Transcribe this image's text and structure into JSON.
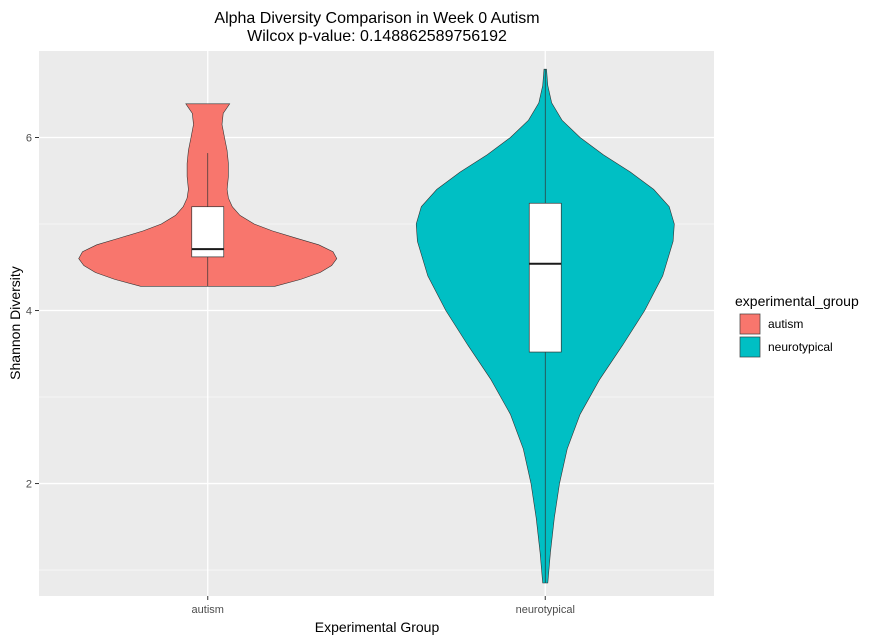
{
  "chart_data": {
    "type": "violin",
    "title": "Alpha Diversity Comparison in Week 0 Autism",
    "subtitle": "Wilcox p-value: 0.148862589756192",
    "xlabel": "Experimental Group",
    "ylabel": "Shannon Diversity",
    "categories": [
      "autism",
      "neurotypical"
    ],
    "ylim": [
      0.7,
      7.0
    ],
    "y_ticks": [
      2,
      4,
      6
    ],
    "y_tick_labels": [
      "2",
      "4",
      "6"
    ],
    "grid": true,
    "legend": {
      "title": "experimental_group",
      "position": "right",
      "entries": [
        {
          "label": "autism",
          "color": "#F8766D"
        },
        {
          "label": "neurotypical",
          "color": "#00BFC4"
        }
      ]
    },
    "series": [
      {
        "group": "autism",
        "color": "#F8766D",
        "violin_min": 4.28,
        "violin_max": 6.39,
        "density_profile": [
          [
            4.28,
            0.52
          ],
          [
            4.36,
            0.72
          ],
          [
            4.44,
            0.87
          ],
          [
            4.52,
            0.96
          ],
          [
            4.6,
            1.0
          ],
          [
            4.68,
            0.97
          ],
          [
            4.76,
            0.86
          ],
          [
            4.84,
            0.68
          ],
          [
            4.92,
            0.5
          ],
          [
            5.0,
            0.36
          ],
          [
            5.1,
            0.25
          ],
          [
            5.2,
            0.19
          ],
          [
            5.3,
            0.16
          ],
          [
            5.4,
            0.15
          ],
          [
            5.55,
            0.16
          ],
          [
            5.7,
            0.16
          ],
          [
            5.85,
            0.15
          ],
          [
            6.0,
            0.13
          ],
          [
            6.15,
            0.11
          ],
          [
            6.28,
            0.12
          ],
          [
            6.39,
            0.17
          ]
        ],
        "box": {
          "whisker_low": 4.28,
          "q1": 4.62,
          "median": 4.71,
          "q3": 5.2,
          "whisker_high": 5.82
        }
      },
      {
        "group": "neurotypical",
        "color": "#00BFC4",
        "violin_min": 0.85,
        "violin_max": 6.79,
        "density_profile": [
          [
            0.85,
            0.02
          ],
          [
            1.2,
            0.04
          ],
          [
            1.6,
            0.07
          ],
          [
            2.0,
            0.11
          ],
          [
            2.4,
            0.17
          ],
          [
            2.8,
            0.27
          ],
          [
            3.2,
            0.42
          ],
          [
            3.6,
            0.6
          ],
          [
            4.0,
            0.77
          ],
          [
            4.4,
            0.91
          ],
          [
            4.8,
            0.99
          ],
          [
            5.0,
            1.0
          ],
          [
            5.2,
            0.96
          ],
          [
            5.4,
            0.84
          ],
          [
            5.6,
            0.66
          ],
          [
            5.8,
            0.45
          ],
          [
            6.0,
            0.27
          ],
          [
            6.2,
            0.13
          ],
          [
            6.4,
            0.05
          ],
          [
            6.6,
            0.02
          ],
          [
            6.79,
            0.01
          ]
        ],
        "box": {
          "whisker_low": 0.85,
          "q1": 3.52,
          "median": 4.54,
          "q3": 5.24,
          "whisker_high": 6.79
        }
      }
    ]
  }
}
